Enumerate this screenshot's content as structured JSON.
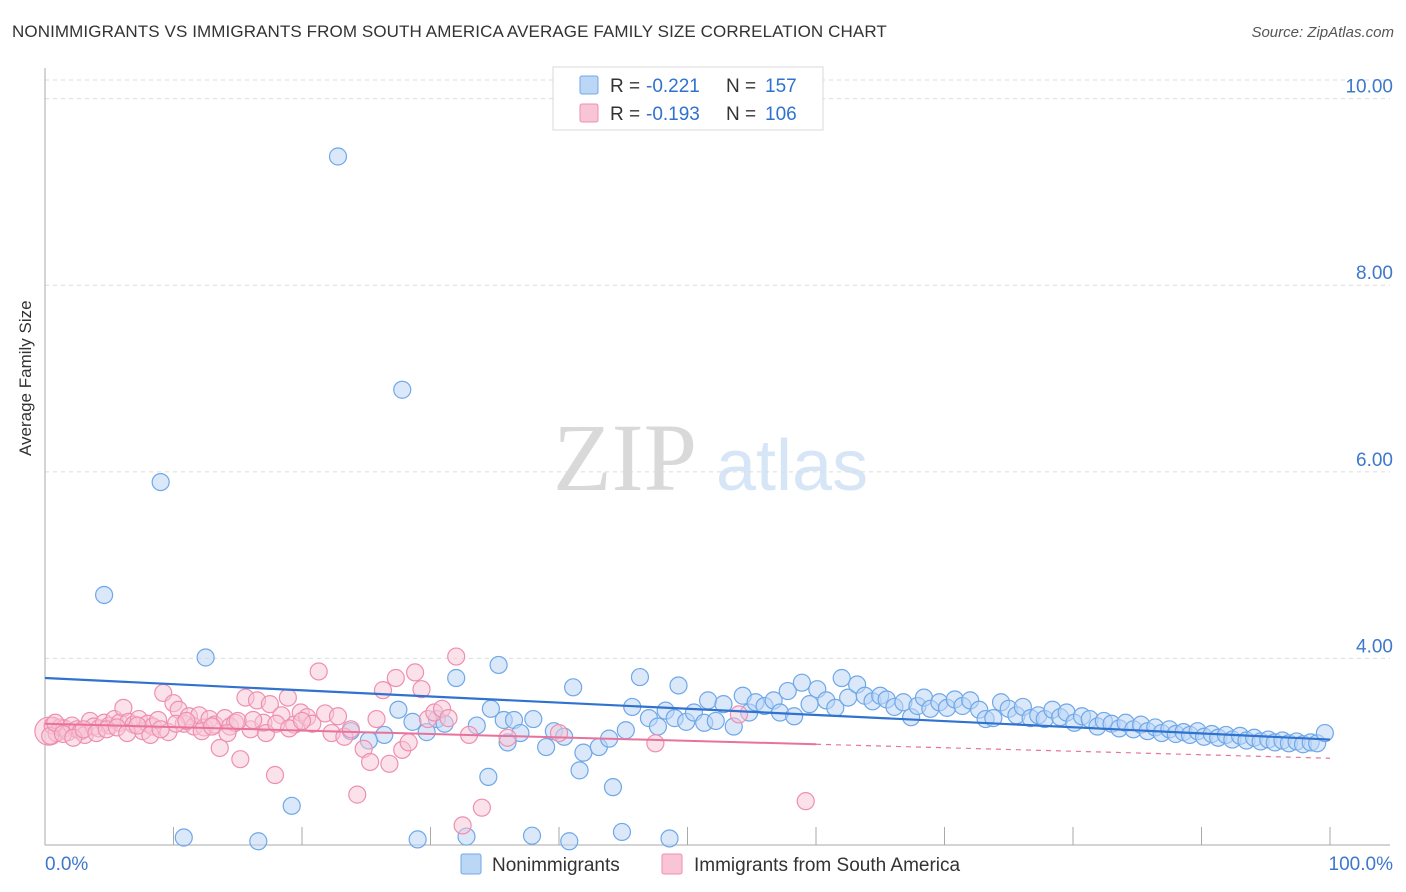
{
  "header": {
    "title": "NONIMMIGRANTS VS IMMIGRANTS FROM SOUTH AMERICA AVERAGE FAMILY SIZE CORRELATION CHART",
    "source": "Source: ZipAtlas.com"
  },
  "watermark": {
    "zip": "ZIP",
    "atlas": "atlas"
  },
  "colors": {
    "blue": "#6fa8e8",
    "blue_fill": "#bcd6f5",
    "blue_line": "#2f72cf",
    "pink": "#ef8fb0",
    "pink_fill": "#f7c5d6",
    "pink_line": "#e8729c",
    "axis_text": "#3e78cc"
  },
  "legend_top": [
    {
      "r_label": "R = ",
      "r_value": "-0.221",
      "n_label": "N = ",
      "n_value": "157"
    },
    {
      "r_label": "R = ",
      "r_value": "-0.193",
      "n_label": "N = ",
      "n_value": "106"
    }
  ],
  "chart_data": {
    "type": "scatter",
    "title": "NONIMMIGRANTS VS IMMIGRANTS FROM SOUTH AMERICA AVERAGE FAMILY SIZE CORRELATION CHART",
    "xlabel": "",
    "ylabel": "Average Family Size",
    "xlim": [
      0,
      100
    ],
    "ylim": [
      2.0,
      10.2
    ],
    "x_tick_labels": [
      "0.0%",
      "100.0%"
    ],
    "y_ticks": [
      4.0,
      6.0,
      8.0,
      10.0
    ],
    "y_tick_labels": [
      "4.00",
      "6.00",
      "8.00",
      "10.00"
    ],
    "grid": true,
    "legend_position": "bottom-center",
    "series": [
      {
        "name": "Nonimmigrants",
        "R": -0.221,
        "N": 157,
        "trend": {
          "x": [
            0,
            100
          ],
          "y": [
            3.79,
            3.13
          ]
        },
        "points": [
          [
            22.8,
            9.38
          ],
          [
            27.8,
            6.88
          ],
          [
            9.0,
            5.89
          ],
          [
            4.6,
            4.68
          ],
          [
            12.5,
            4.01
          ],
          [
            19.2,
            2.42
          ],
          [
            10.8,
            2.08
          ],
          [
            16.6,
            2.04
          ],
          [
            26.4,
            3.18
          ],
          [
            23.8,
            3.22
          ],
          [
            25.2,
            3.12
          ],
          [
            28.6,
            3.32
          ],
          [
            27.5,
            3.45
          ],
          [
            29.7,
            3.21
          ],
          [
            30.5,
            3.35
          ],
          [
            31.1,
            3.3
          ],
          [
            32.0,
            3.79
          ],
          [
            33.6,
            3.28
          ],
          [
            34.7,
            3.46
          ],
          [
            35.3,
            3.93
          ],
          [
            35.7,
            3.34
          ],
          [
            36.5,
            3.34
          ],
          [
            37.0,
            3.2
          ],
          [
            38.0,
            3.35
          ],
          [
            39.0,
            3.05
          ],
          [
            39.6,
            3.22
          ],
          [
            40.4,
            3.16
          ],
          [
            41.1,
            3.69
          ],
          [
            41.9,
            2.99
          ],
          [
            41.6,
            2.8
          ],
          [
            43.1,
            3.05
          ],
          [
            43.9,
            3.14
          ],
          [
            44.2,
            2.62
          ],
          [
            45.2,
            3.23
          ],
          [
            45.7,
            3.48
          ],
          [
            46.3,
            3.8
          ],
          [
            47.0,
            3.36
          ],
          [
            47.7,
            3.27
          ],
          [
            48.3,
            3.44
          ],
          [
            49.0,
            3.36
          ],
          [
            49.3,
            3.71
          ],
          [
            49.9,
            3.32
          ],
          [
            50.5,
            3.42
          ],
          [
            51.3,
            3.31
          ],
          [
            51.6,
            3.55
          ],
          [
            52.2,
            3.33
          ],
          [
            52.8,
            3.51
          ],
          [
            53.6,
            3.27
          ],
          [
            54.3,
            3.6
          ],
          [
            54.8,
            3.42
          ],
          [
            55.3,
            3.53
          ],
          [
            56.0,
            3.49
          ],
          [
            56.7,
            3.55
          ],
          [
            57.2,
            3.42
          ],
          [
            57.8,
            3.65
          ],
          [
            58.3,
            3.38
          ],
          [
            58.9,
            3.74
          ],
          [
            59.5,
            3.51
          ],
          [
            60.1,
            3.67
          ],
          [
            60.8,
            3.55
          ],
          [
            61.5,
            3.47
          ],
          [
            62.0,
            3.79
          ],
          [
            62.5,
            3.58
          ],
          [
            63.2,
            3.72
          ],
          [
            63.8,
            3.6
          ],
          [
            64.4,
            3.54
          ],
          [
            65.0,
            3.6
          ],
          [
            65.5,
            3.56
          ],
          [
            66.1,
            3.48
          ],
          [
            66.8,
            3.53
          ],
          [
            67.4,
            3.37
          ],
          [
            67.9,
            3.49
          ],
          [
            68.4,
            3.58
          ],
          [
            68.9,
            3.46
          ],
          [
            69.6,
            3.53
          ],
          [
            70.2,
            3.47
          ],
          [
            70.8,
            3.56
          ],
          [
            71.4,
            3.49
          ],
          [
            72.0,
            3.55
          ],
          [
            72.7,
            3.45
          ],
          [
            73.2,
            3.35
          ],
          [
            73.8,
            3.36
          ],
          [
            74.4,
            3.53
          ],
          [
            75.0,
            3.46
          ],
          [
            75.6,
            3.39
          ],
          [
            76.1,
            3.48
          ],
          [
            76.7,
            3.36
          ],
          [
            77.3,
            3.39
          ],
          [
            77.8,
            3.35
          ],
          [
            78.4,
            3.45
          ],
          [
            79.0,
            3.37
          ],
          [
            79.5,
            3.42
          ],
          [
            80.1,
            3.31
          ],
          [
            80.7,
            3.38
          ],
          [
            81.3,
            3.35
          ],
          [
            81.9,
            3.27
          ],
          [
            82.4,
            3.33
          ],
          [
            83.0,
            3.3
          ],
          [
            83.6,
            3.25
          ],
          [
            84.1,
            3.31
          ],
          [
            84.7,
            3.24
          ],
          [
            85.3,
            3.29
          ],
          [
            85.8,
            3.22
          ],
          [
            86.4,
            3.26
          ],
          [
            86.9,
            3.2
          ],
          [
            87.5,
            3.24
          ],
          [
            88.0,
            3.19
          ],
          [
            88.6,
            3.21
          ],
          [
            89.1,
            3.18
          ],
          [
            89.7,
            3.22
          ],
          [
            90.2,
            3.16
          ],
          [
            90.8,
            3.19
          ],
          [
            91.3,
            3.15
          ],
          [
            91.9,
            3.18
          ],
          [
            92.4,
            3.13
          ],
          [
            93.0,
            3.17
          ],
          [
            93.5,
            3.12
          ],
          [
            94.1,
            3.15
          ],
          [
            94.6,
            3.11
          ],
          [
            95.2,
            3.13
          ],
          [
            95.7,
            3.1
          ],
          [
            96.3,
            3.12
          ],
          [
            96.8,
            3.09
          ],
          [
            97.4,
            3.11
          ],
          [
            97.9,
            3.08
          ],
          [
            98.5,
            3.1
          ],
          [
            99.0,
            3.09
          ],
          [
            99.6,
            3.2
          ],
          [
            29.0,
            2.06
          ],
          [
            32.8,
            2.09
          ],
          [
            34.5,
            2.73
          ],
          [
            37.9,
            2.1
          ],
          [
            40.8,
            2.04
          ],
          [
            44.9,
            2.14
          ],
          [
            48.6,
            2.07
          ],
          [
            36.0,
            3.1
          ]
        ]
      },
      {
        "name": "Immigrants from South America",
        "R": -0.193,
        "N": 106,
        "trend": {
          "x": [
            0,
            60
          ],
          "y": [
            3.3,
            3.08
          ]
        },
        "trend_dashed": {
          "x": [
            60,
            100
          ],
          "y": [
            3.08,
            2.93
          ]
        },
        "points": [
          [
            0.3,
            3.22
          ],
          [
            0.6,
            3.28
          ],
          [
            0.9,
            3.2
          ],
          [
            1.2,
            3.26
          ],
          [
            1.5,
            3.25
          ],
          [
            1.8,
            3.21
          ],
          [
            2.1,
            3.28
          ],
          [
            2.5,
            3.24
          ],
          [
            2.8,
            3.22
          ],
          [
            3.1,
            3.18
          ],
          [
            3.5,
            3.33
          ],
          [
            3.8,
            3.27
          ],
          [
            4.2,
            3.25
          ],
          [
            4.6,
            3.31
          ],
          [
            5.0,
            3.28
          ],
          [
            5.4,
            3.35
          ],
          [
            5.8,
            3.31
          ],
          [
            6.1,
            3.47
          ],
          [
            6.5,
            3.32
          ],
          [
            6.9,
            3.29
          ],
          [
            7.3,
            3.35
          ],
          [
            7.6,
            3.22
          ],
          [
            8.0,
            3.3
          ],
          [
            8.4,
            3.27
          ],
          [
            8.8,
            3.34
          ],
          [
            9.2,
            3.63
          ],
          [
            9.6,
            3.21
          ],
          [
            10.0,
            3.52
          ],
          [
            10.4,
            3.45
          ],
          [
            10.8,
            3.3
          ],
          [
            11.2,
            3.38
          ],
          [
            11.6,
            3.27
          ],
          [
            12.0,
            3.39
          ],
          [
            12.4,
            3.26
          ],
          [
            12.8,
            3.35
          ],
          [
            13.2,
            3.29
          ],
          [
            13.6,
            3.04
          ],
          [
            14.0,
            3.36
          ],
          [
            14.4,
            3.27
          ],
          [
            14.8,
            3.31
          ],
          [
            15.2,
            2.92
          ],
          [
            15.6,
            3.58
          ],
          [
            16.0,
            3.24
          ],
          [
            16.5,
            3.55
          ],
          [
            17.0,
            3.31
          ],
          [
            17.5,
            3.51
          ],
          [
            17.9,
            2.75
          ],
          [
            18.4,
            3.39
          ],
          [
            18.9,
            3.58
          ],
          [
            19.4,
            3.29
          ],
          [
            19.9,
            3.42
          ],
          [
            20.4,
            3.37
          ],
          [
            20.8,
            3.3
          ],
          [
            21.3,
            3.86
          ],
          [
            21.8,
            3.41
          ],
          [
            22.3,
            3.2
          ],
          [
            22.8,
            3.38
          ],
          [
            23.3,
            3.16
          ],
          [
            23.8,
            3.24
          ],
          [
            24.3,
            2.54
          ],
          [
            24.8,
            3.03
          ],
          [
            25.3,
            2.89
          ],
          [
            25.8,
            3.35
          ],
          [
            26.3,
            3.66
          ],
          [
            26.8,
            2.87
          ],
          [
            27.3,
            3.79
          ],
          [
            27.8,
            3.02
          ],
          [
            28.3,
            3.1
          ],
          [
            28.8,
            3.85
          ],
          [
            29.3,
            3.67
          ],
          [
            29.8,
            3.35
          ],
          [
            30.3,
            3.42
          ],
          [
            30.9,
            3.46
          ],
          [
            31.4,
            3.36
          ],
          [
            32.0,
            4.02
          ],
          [
            32.5,
            2.21
          ],
          [
            33.0,
            3.18
          ],
          [
            34.0,
            2.4
          ],
          [
            36.0,
            3.15
          ],
          [
            40.0,
            3.2
          ],
          [
            47.5,
            3.09
          ],
          [
            54.0,
            3.4
          ],
          [
            59.2,
            2.47
          ],
          [
            0.4,
            3.17
          ],
          [
            0.8,
            3.31
          ],
          [
            1.4,
            3.19
          ],
          [
            2.2,
            3.15
          ],
          [
            3.0,
            3.24
          ],
          [
            4.0,
            3.2
          ],
          [
            4.8,
            3.24
          ],
          [
            5.6,
            3.26
          ],
          [
            6.4,
            3.2
          ],
          [
            7.2,
            3.28
          ],
          [
            8.2,
            3.18
          ],
          [
            9.0,
            3.24
          ],
          [
            10.2,
            3.3
          ],
          [
            11.0,
            3.33
          ],
          [
            12.2,
            3.22
          ],
          [
            13.0,
            3.27
          ],
          [
            14.2,
            3.2
          ],
          [
            15.0,
            3.33
          ],
          [
            16.2,
            3.34
          ],
          [
            17.2,
            3.2
          ],
          [
            18.0,
            3.3
          ],
          [
            19.0,
            3.25
          ],
          [
            20.0,
            3.33
          ]
        ]
      }
    ]
  }
}
